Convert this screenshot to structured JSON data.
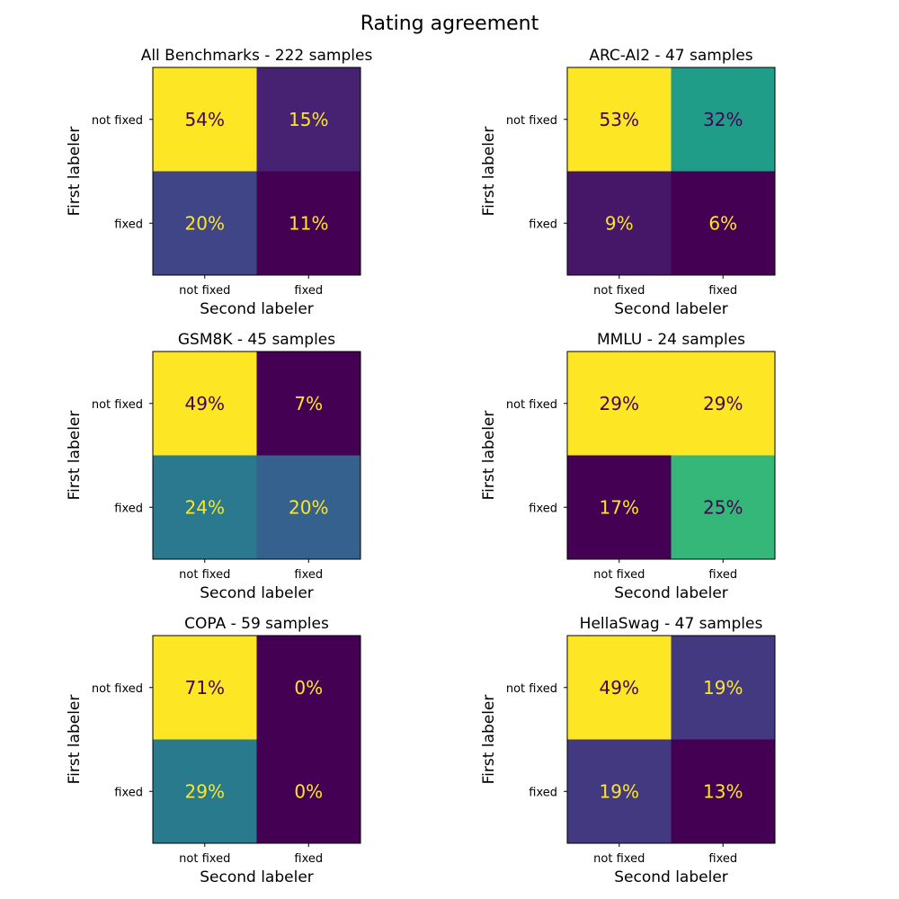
{
  "figure": {
    "title": "Rating agreement"
  },
  "colormap": {
    "name": "viridis",
    "stops": [
      "#440154",
      "#482878",
      "#3e4989",
      "#31688e",
      "#26828e",
      "#1f9e89",
      "#35b779",
      "#6ece58",
      "#b5de2b",
      "#fde725"
    ],
    "light_text": "#fde725",
    "dark_text": "#440154"
  },
  "chart_data": [
    {
      "type": "heatmap",
      "title": "All Benchmarks - 222 samples",
      "xlabel": "Second labeler",
      "ylabel": "First labeler",
      "x_categories": [
        "not fixed",
        "fixed"
      ],
      "y_categories": [
        "not fixed",
        "fixed"
      ],
      "values": [
        [
          54,
          15
        ],
        [
          20,
          11
        ]
      ],
      "cell_labels": [
        [
          "54%",
          "15%"
        ],
        [
          "20%",
          "11%"
        ]
      ]
    },
    {
      "type": "heatmap",
      "title": "ARC-AI2 - 47 samples",
      "xlabel": "Second labeler",
      "ylabel": "First labeler",
      "x_categories": [
        "not fixed",
        "fixed"
      ],
      "y_categories": [
        "not fixed",
        "fixed"
      ],
      "values": [
        [
          53,
          32
        ],
        [
          9,
          6
        ]
      ],
      "cell_labels": [
        [
          "53%",
          "32%"
        ],
        [
          "9%",
          "6%"
        ]
      ]
    },
    {
      "type": "heatmap",
      "title": "GSM8K - 45 samples",
      "xlabel": "Second labeler",
      "ylabel": "First labeler",
      "x_categories": [
        "not fixed",
        "fixed"
      ],
      "y_categories": [
        "not fixed",
        "fixed"
      ],
      "values": [
        [
          49,
          7
        ],
        [
          24,
          20
        ]
      ],
      "cell_labels": [
        [
          "49%",
          "7%"
        ],
        [
          "24%",
          "20%"
        ]
      ]
    },
    {
      "type": "heatmap",
      "title": "MMLU - 24 samples",
      "xlabel": "Second labeler",
      "ylabel": "First labeler",
      "x_categories": [
        "not fixed",
        "fixed"
      ],
      "y_categories": [
        "not fixed",
        "fixed"
      ],
      "values": [
        [
          29,
          29
        ],
        [
          17,
          25
        ]
      ],
      "cell_labels": [
        [
          "29%",
          "29%"
        ],
        [
          "17%",
          "25%"
        ]
      ]
    },
    {
      "type": "heatmap",
      "title": "COPA - 59 samples",
      "xlabel": "Second labeler",
      "ylabel": "First labeler",
      "x_categories": [
        "not fixed",
        "fixed"
      ],
      "y_categories": [
        "not fixed",
        "fixed"
      ],
      "values": [
        [
          71,
          0
        ],
        [
          29,
          0
        ]
      ],
      "cell_labels": [
        [
          "71%",
          "0%"
        ],
        [
          "29%",
          "0%"
        ]
      ]
    },
    {
      "type": "heatmap",
      "title": "HellaSwag - 47 samples",
      "xlabel": "Second labeler",
      "ylabel": "First labeler",
      "x_categories": [
        "not fixed",
        "fixed"
      ],
      "y_categories": [
        "not fixed",
        "fixed"
      ],
      "values": [
        [
          49,
          19
        ],
        [
          19,
          13
        ]
      ],
      "cell_labels": [
        [
          "49%",
          "19%"
        ],
        [
          "19%",
          "13%"
        ]
      ]
    }
  ]
}
